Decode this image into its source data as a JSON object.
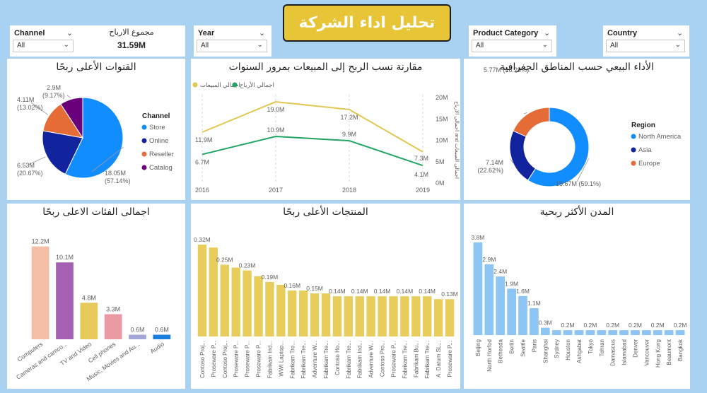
{
  "header": {
    "title": "تحليل اداء الشركة"
  },
  "slicers": {
    "channel": {
      "label": "Channel",
      "value": "All"
    },
    "year": {
      "label": "Year",
      "value": "All"
    },
    "product_category": {
      "label": "Product Category",
      "value": "All"
    },
    "country": {
      "label": "Country",
      "value": "All"
    }
  },
  "kpi": {
    "label": "مجموع الارباح",
    "value": "31.59M"
  },
  "chart_data": [
    {
      "id": "channels",
      "type": "pie",
      "title": "القنوات الأعلى ربحًا",
      "legend_title": "Channel",
      "legend_position": "right",
      "slices": [
        {
          "name": "Store",
          "value": 18.05,
          "label": "18.05M (57.14%)",
          "color": "#118dff"
        },
        {
          "name": "Online",
          "value": 6.53,
          "label": "6.53M (20.67%)",
          "color": "#12239e"
        },
        {
          "name": "Reseller",
          "value": 4.11,
          "label": "4.11M (13.02%)",
          "color": "#e66c37"
        },
        {
          "name": "Catalog",
          "value": 2.9,
          "label": "2.9M (9.17%)",
          "color": "#6b007b"
        }
      ]
    },
    {
      "id": "profit_vs_sales",
      "type": "line",
      "title": "مقارنة نسب الربح إلى المبيعات بمرور السنوات",
      "x": [
        "2016",
        "2017",
        "2018",
        "2019"
      ],
      "ylim": [
        0,
        20
      ],
      "y_ticks": [
        "0M",
        "5M",
        "10M",
        "15M",
        "20M"
      ],
      "ylabel": "اجمالي الارباح and اجمالي المبيعات",
      "legend_position": "top",
      "series": [
        {
          "name": "اجمالي المبيعات",
          "values": [
            11.9,
            19.0,
            17.2,
            7.3
          ],
          "labels": [
            "11.9M",
            "19.0M",
            "17.2M",
            "7.3M"
          ],
          "color": "#e2c64f"
        },
        {
          "name": "اجمالي الأرباح",
          "values": [
            6.7,
            10.9,
            9.9,
            4.1
          ],
          "labels": [
            "6.7M",
            "10.9M",
            "9.9M",
            "4.1M"
          ],
          "color": "#20a565"
        }
      ]
    },
    {
      "id": "regions",
      "type": "pie",
      "title": "الأداء البيعي حسب المناطق الجغرافية",
      "legend_title": "Region",
      "legend_position": "right",
      "donut": true,
      "slices": [
        {
          "name": "North America",
          "value": 18.67,
          "label": "18.67M (59.1%)",
          "color": "#118dff"
        },
        {
          "name": "Asia",
          "value": 7.14,
          "label": "7.14M (22.62%)",
          "color": "#12239e"
        },
        {
          "name": "Europe",
          "value": 5.77,
          "label": "5.77M (18.28%)",
          "color": "#e66c37"
        }
      ]
    },
    {
      "id": "categories",
      "type": "bar",
      "title": "اجمالى الفئات الاعلى ربحًا",
      "ylim": [
        0,
        13
      ],
      "categories": [
        "Computers",
        "Cameras and camco...",
        "TV and Video",
        "Cell phones",
        "Music, Movies and Au...",
        "Audio"
      ],
      "values": [
        12.2,
        10.1,
        4.8,
        3.3,
        0.6,
        0.6
      ],
      "labels": [
        "12.2M",
        "10.1M",
        "4.8M",
        "3.3M",
        "0.6M",
        "0.6M"
      ],
      "colors": [
        "#f4bea7",
        "#a560b4",
        "#e8c95c",
        "#e99aa3",
        "#a3a5d8",
        "#1a7ee0"
      ]
    },
    {
      "id": "products",
      "type": "bar",
      "title": "المنتجات الأعلى ربحًا",
      "ylim": [
        0,
        0.34
      ],
      "color": "#e8cd5d",
      "categories": [
        "Contoso Proj...",
        "Proseware P...",
        "Contoso Proj...",
        "Proseware P...",
        "Proseware P...",
        "Proseware P...",
        "Fabrikam Ind...",
        "WWI Laptop...",
        "Fabrikam Tre...",
        "Fabrikam Tre...",
        "Adventure W...",
        "Fabrikam Tre...",
        "Contoso Ho...",
        "Fabrikam Tre...",
        "Fabrikam Ind...",
        "Adventure W...",
        "Contoso Pro...",
        "Proseware P...",
        "Fabrikam Tre...",
        "Fabrikam Bu...",
        "Fabrikam Tre...",
        "A. Datum SL...",
        "Proseware P..."
      ],
      "values": [
        0.32,
        0.31,
        0.25,
        0.24,
        0.23,
        0.21,
        0.19,
        0.18,
        0.16,
        0.16,
        0.15,
        0.15,
        0.14,
        0.14,
        0.14,
        0.14,
        0.14,
        0.14,
        0.14,
        0.14,
        0.14,
        0.13,
        0.13
      ],
      "labels": [
        "0.32M",
        "",
        "0.25M",
        "",
        "0.23M",
        "",
        "0.19M",
        "",
        "0.16M",
        "",
        "0.15M",
        "",
        "0.14M",
        "",
        "0.14M",
        "",
        "0.14M",
        "",
        "0.14M",
        "",
        "0.14M",
        "",
        "0.13M"
      ]
    },
    {
      "id": "cities",
      "type": "bar",
      "title": "المدن الأكثر ربحية",
      "ylim": [
        0,
        4
      ],
      "color": "#8dc5f5",
      "categories": [
        "Beijing",
        "North Horfod",
        "Bethesda",
        "Berlin",
        "Seattle",
        "Paris",
        "Shanghai",
        "Sydney",
        "Houston",
        "Ashgabat",
        "Tokyo",
        "Tehran",
        "Damascus",
        "Islamabad",
        "Denver",
        "Vancouver",
        "Hong Kong",
        "Beaumont",
        "Bangkok"
      ],
      "values": [
        3.8,
        2.9,
        2.4,
        1.9,
        1.6,
        1.1,
        0.3,
        0.2,
        0.2,
        0.2,
        0.2,
        0.2,
        0.2,
        0.2,
        0.2,
        0.2,
        0.2,
        0.2,
        0.2
      ],
      "labels": [
        "3.8M",
        "2.9M",
        "2.4M",
        "1.9M",
        "1.6M",
        "1.1M",
        "0.3M",
        "",
        "0.2M",
        "",
        "0.2M",
        "",
        "0.2M",
        "",
        "0.2M",
        "",
        "0.2M",
        "",
        "0.2M"
      ]
    }
  ]
}
